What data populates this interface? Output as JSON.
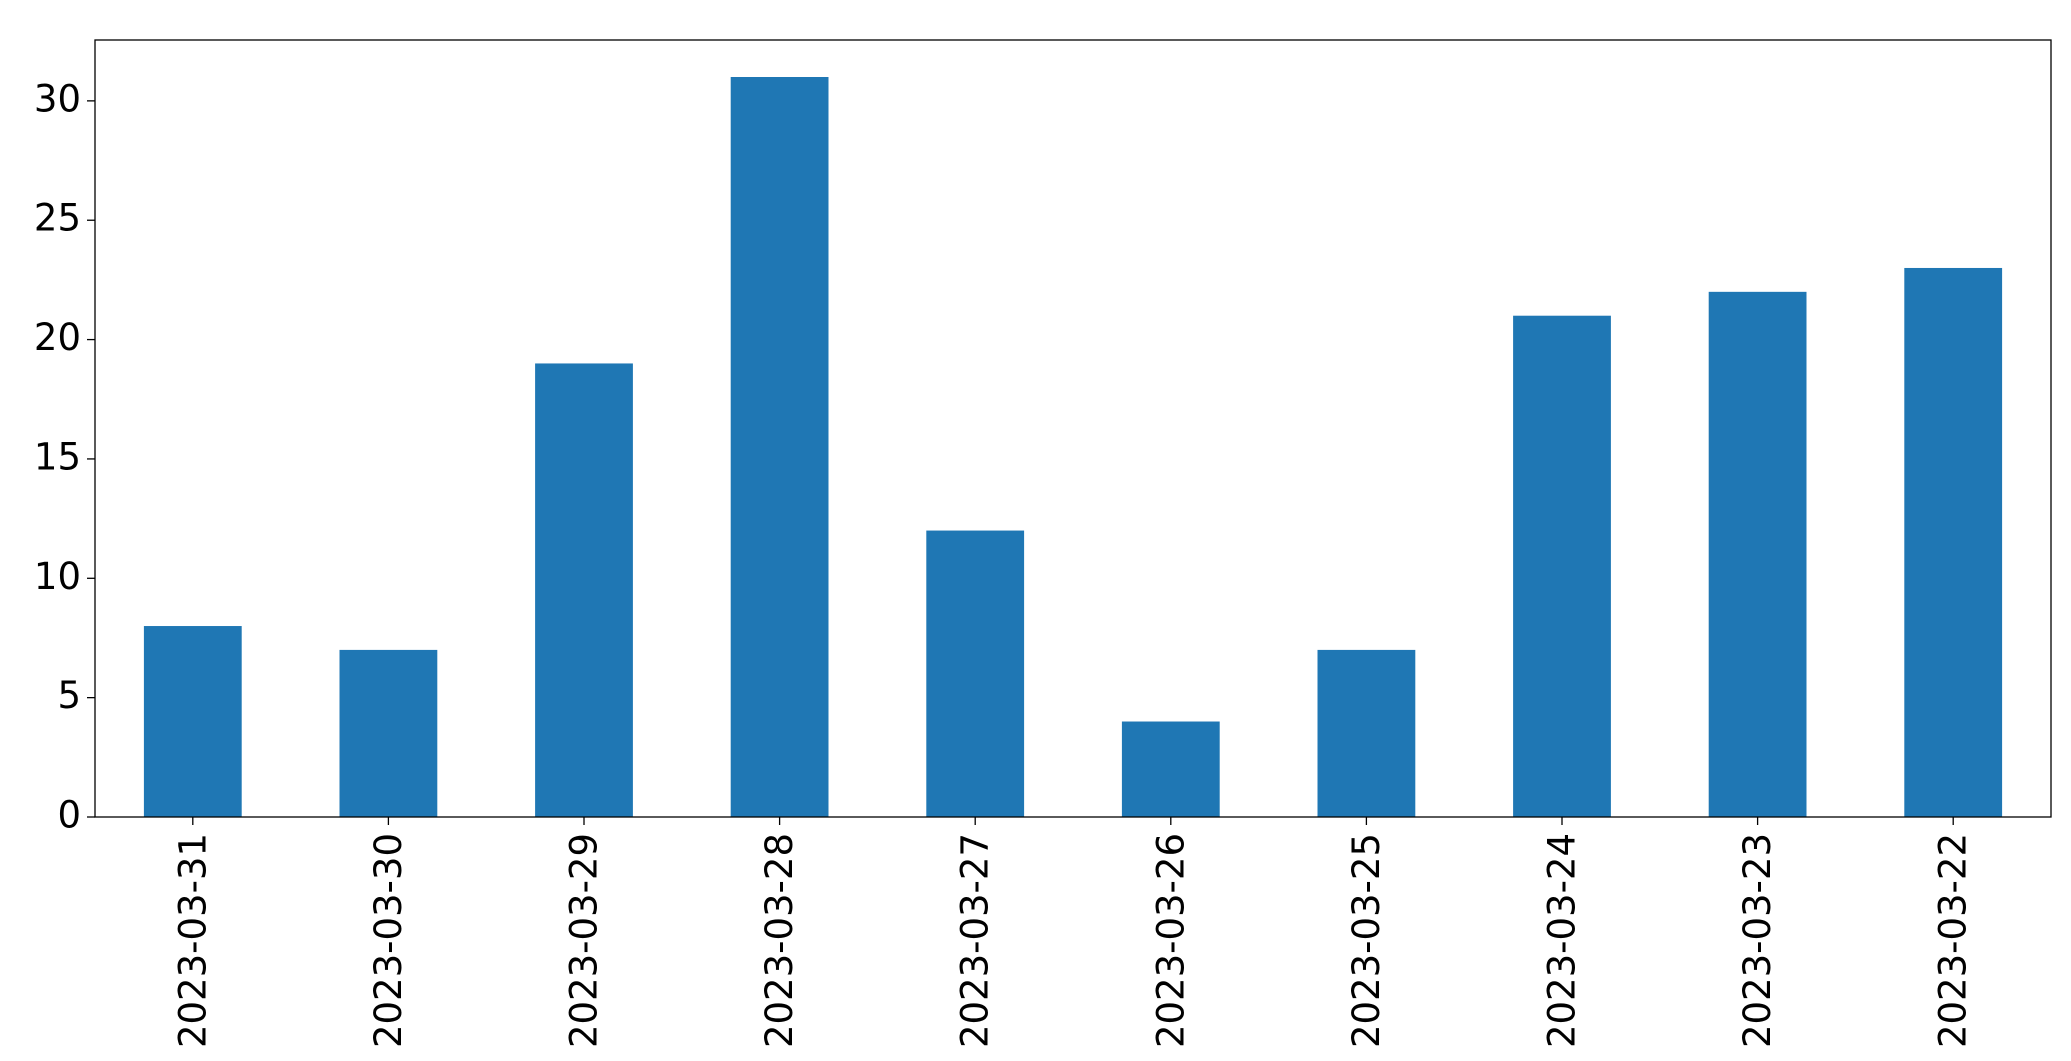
{
  "chart_data": {
    "type": "bar",
    "categories": [
      "2023-03-31",
      "2023-03-30",
      "2023-03-29",
      "2023-03-28",
      "2023-03-27",
      "2023-03-26",
      "2023-03-25",
      "2023-03-24",
      "2023-03-23",
      "2023-03-22"
    ],
    "values": [
      8,
      7,
      19,
      31,
      12,
      4,
      7,
      21,
      22,
      23
    ],
    "color": "#1f77b4",
    "ylim": [
      0,
      32.55
    ],
    "yticks": [
      0,
      5,
      10,
      15,
      20,
      25,
      30
    ],
    "grid": false
  }
}
